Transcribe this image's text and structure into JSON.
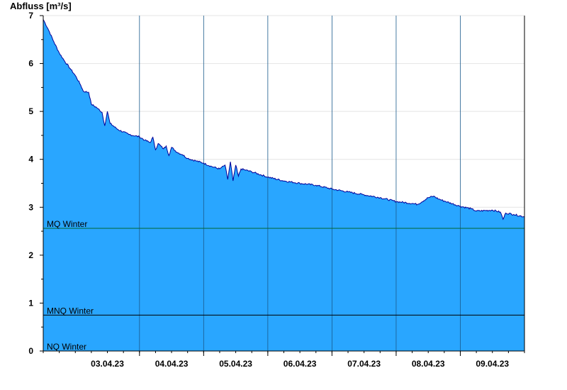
{
  "chart_data": {
    "type": "area",
    "ylabel": "Abfluss [m³/s]",
    "ylim": [
      0,
      7
    ],
    "yticks": [
      0,
      1,
      2,
      3,
      4,
      5,
      6,
      7
    ],
    "xlim": [
      "02.04.23 12:00",
      "09.04.23 24:00"
    ],
    "xticks": [
      {
        "at": "03.04.23 12:00",
        "label": "03.04.23"
      },
      {
        "at": "04.04.23 12:00",
        "label": "04.04.23"
      },
      {
        "at": "05.04.23 12:00",
        "label": "05.04.23"
      },
      {
        "at": "06.04.23 12:00",
        "label": "06.04.23"
      },
      {
        "at": "07.04.23 12:00",
        "label": "07.04.23"
      },
      {
        "at": "08.04.23 12:00",
        "label": "08.04.23"
      },
      {
        "at": "09.04.23 12:00",
        "label": "09.04.23"
      }
    ],
    "day_separators": [
      "04.04.23 00:00",
      "05.04.23 00:00",
      "06.04.23 00:00",
      "07.04.23 00:00",
      "08.04.23 00:00",
      "09.04.23 00:00"
    ],
    "grid": true,
    "series": [
      {
        "name": "",
        "color": "#000099",
        "fill": "#29a6ff",
        "points": [
          [
            "02.04.23 12:00",
            6.92
          ],
          [
            "02.04.23 14:00",
            6.7
          ],
          [
            "02.04.23 16:00",
            6.45
          ],
          [
            "02.04.23 18:00",
            6.22
          ],
          [
            "02.04.23 20:00",
            6.05
          ],
          [
            "02.04.23 22:00",
            5.9
          ],
          [
            "03.04.23 00:00",
            5.75
          ],
          [
            "03.04.23 02:00",
            5.55
          ],
          [
            "03.04.23 03:00",
            5.42
          ],
          [
            "03.04.23 05:00",
            5.4
          ],
          [
            "03.04.23 06:00",
            5.15
          ],
          [
            "03.04.23 08:00",
            5.08
          ],
          [
            "03.04.23 10:00",
            4.98
          ],
          [
            "03.04.23 11:00",
            4.7
          ],
          [
            "03.04.23 12:00",
            5.0
          ],
          [
            "03.04.23 13:00",
            4.75
          ],
          [
            "03.04.23 16:00",
            4.62
          ],
          [
            "03.04.23 20:00",
            4.52
          ],
          [
            "04.04.23 00:00",
            4.47
          ],
          [
            "04.04.23 02:00",
            4.4
          ],
          [
            "04.04.23 04:00",
            4.35
          ],
          [
            "04.04.23 05:00",
            4.46
          ],
          [
            "04.04.23 06:00",
            4.2
          ],
          [
            "04.04.23 07:00",
            4.33
          ],
          [
            "04.04.23 09:00",
            4.22
          ],
          [
            "04.04.23 10:00",
            4.28
          ],
          [
            "04.04.23 11:00",
            4.08
          ],
          [
            "04.04.23 12:00",
            4.25
          ],
          [
            "04.04.23 14:00",
            4.15
          ],
          [
            "04.04.23 16:00",
            4.1
          ],
          [
            "04.04.23 18:00",
            4.02
          ],
          [
            "04.04.23 21:00",
            3.97
          ],
          [
            "05.04.23 00:00",
            3.92
          ],
          [
            "05.04.23 03:00",
            3.85
          ],
          [
            "05.04.23 06:00",
            3.8
          ],
          [
            "05.04.23 08:00",
            3.88
          ],
          [
            "05.04.23 09:00",
            3.58
          ],
          [
            "05.04.23 10:00",
            3.95
          ],
          [
            "05.04.23 11:00",
            3.55
          ],
          [
            "05.04.23 12:00",
            3.88
          ],
          [
            "05.04.23 13:00",
            3.65
          ],
          [
            "05.04.23 14:00",
            3.8
          ],
          [
            "05.04.23 18:00",
            3.74
          ],
          [
            "06.04.23 00:00",
            3.63
          ],
          [
            "06.04.23 06:00",
            3.55
          ],
          [
            "06.04.23 12:00",
            3.5
          ],
          [
            "06.04.23 18:00",
            3.46
          ],
          [
            "07.04.23 00:00",
            3.38
          ],
          [
            "07.04.23 06:00",
            3.32
          ],
          [
            "07.04.23 12:00",
            3.26
          ],
          [
            "07.04.23 18:00",
            3.2
          ],
          [
            "08.04.23 00:00",
            3.12
          ],
          [
            "08.04.23 06:00",
            3.08
          ],
          [
            "08.04.23 08:00",
            3.06
          ],
          [
            "08.04.23 12:00",
            3.2
          ],
          [
            "08.04.23 14:00",
            3.23
          ],
          [
            "08.04.23 16:00",
            3.17
          ],
          [
            "08.04.23 18:00",
            3.13
          ],
          [
            "09.04.23 00:00",
            3.02
          ],
          [
            "09.04.23 04:00",
            2.97
          ],
          [
            "09.04.23 06:00",
            2.92
          ],
          [
            "09.04.23 12:00",
            2.94
          ],
          [
            "09.04.23 15:00",
            2.9
          ],
          [
            "09.04.23 16:00",
            2.75
          ],
          [
            "09.04.23 17:00",
            2.88
          ],
          [
            "09.04.23 20:00",
            2.85
          ],
          [
            "09.04.23 24:00",
            2.8
          ]
        ]
      }
    ],
    "reference_lines": [
      {
        "label": "MQ Winter",
        "value": 2.56,
        "color": "#006633"
      },
      {
        "label": "MNQ Winter",
        "value": 0.75,
        "color": "#000000"
      },
      {
        "label": "NQ Winter",
        "value": 0,
        "color": "#000000"
      }
    ]
  }
}
